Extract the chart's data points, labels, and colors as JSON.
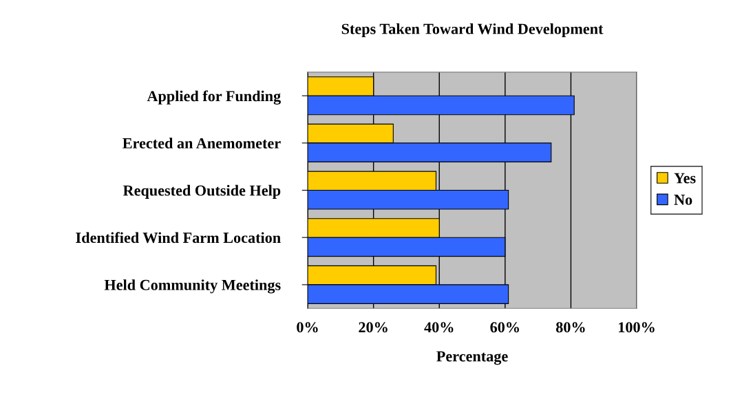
{
  "chart_data": {
    "type": "bar",
    "orientation": "horizontal",
    "title": "Steps Taken Toward Wind Development",
    "xlabel": "Percentage",
    "categories": [
      "Applied for Funding",
      "Erected an Anemometer",
      "Requested Outside Help",
      "Identified Wind Farm Location",
      "Held Community Meetings"
    ],
    "series": [
      {
        "name": "Yes",
        "color": "#ffcc00",
        "values": [
          20,
          26,
          39,
          40,
          39
        ]
      },
      {
        "name": "No",
        "color": "#3366ff",
        "values": [
          81,
          74,
          61,
          60,
          61
        ]
      }
    ],
    "xlim": [
      0,
      100
    ],
    "xticks": [
      {
        "value": 0,
        "label": "0%"
      },
      {
        "value": 20,
        "label": "20%"
      },
      {
        "value": 40,
        "label": "40%"
      },
      {
        "value": 60,
        "label": "60%"
      },
      {
        "value": 80,
        "label": "80%"
      },
      {
        "value": 100,
        "label": "100%"
      }
    ],
    "grid": "x",
    "legend": "right"
  }
}
